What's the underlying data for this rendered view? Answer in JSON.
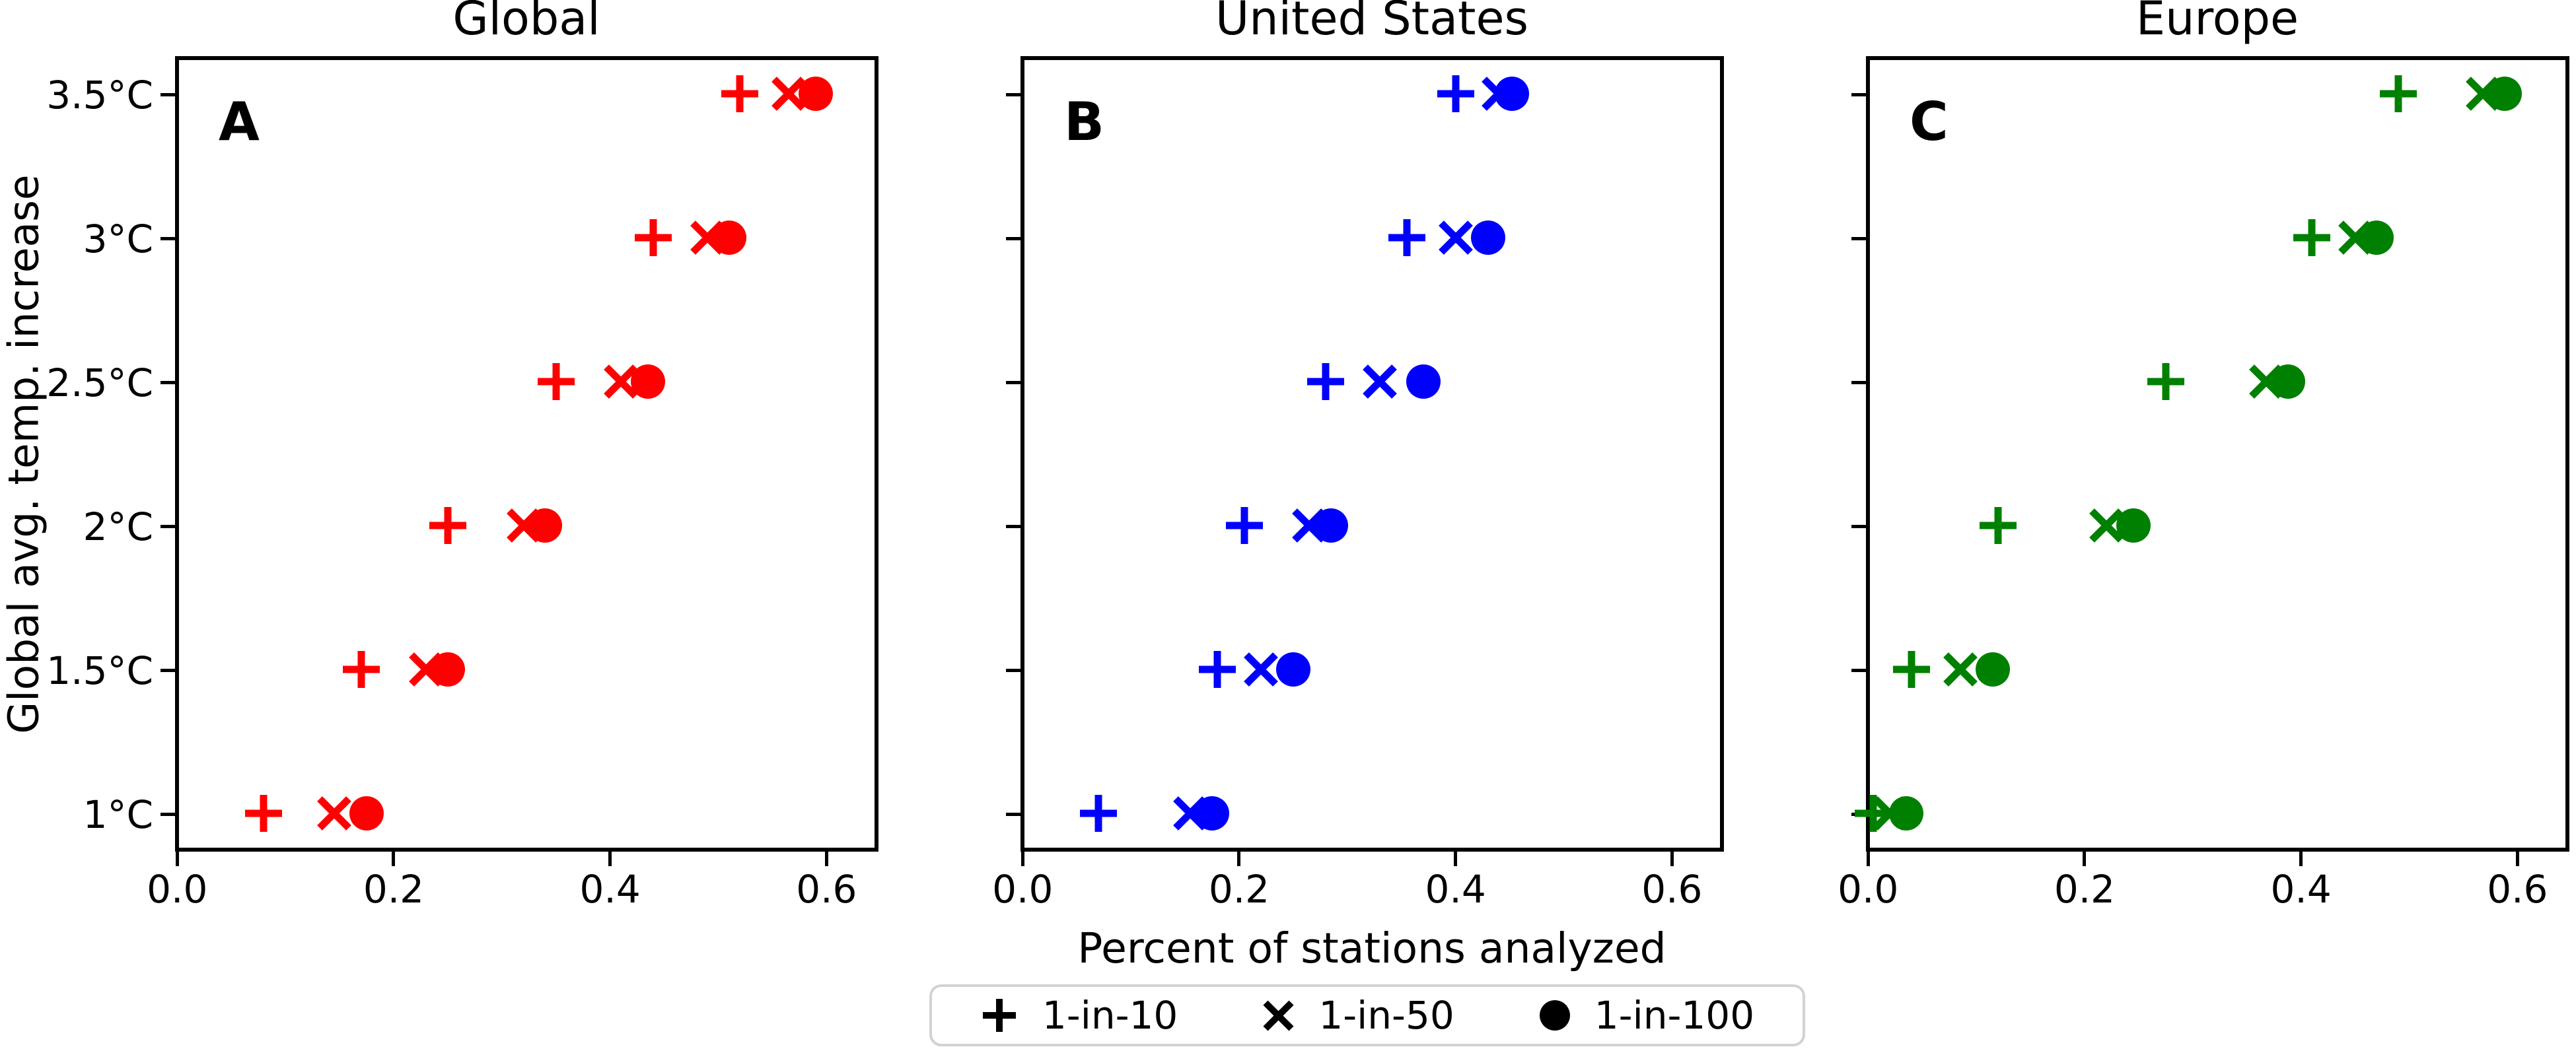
{
  "chart_data": {
    "type": "scatter",
    "x_label": "Percent of stations analyzed",
    "y_label": "Global avg. temp. increase",
    "x_ticks": [
      0.0,
      0.2,
      0.4,
      0.6
    ],
    "x_tick_labels": [
      "0.0",
      "0.2",
      "0.4",
      "0.6"
    ],
    "y_categories": [
      "1°C",
      "1.5°C",
      "2°C",
      "2.5°C",
      "3°C",
      "3.5°C"
    ],
    "y_values": [
      1,
      1.5,
      2,
      2.5,
      3,
      3.5
    ],
    "xlim": [
      -0.002,
      0.648
    ],
    "ylim": [
      0.871,
      3.635
    ],
    "grid": false,
    "legend_position": "bottom-center",
    "series_names": [
      "1-in-10",
      "1-in-50",
      "1-in-100"
    ],
    "panels": [
      {
        "letter": "A",
        "title": "Global",
        "color": "#ff0000",
        "series": [
          {
            "name": "1-in-10",
            "marker": "plus",
            "x": [
              0.08,
              0.17,
              0.25,
              0.35,
              0.44,
              0.52
            ]
          },
          {
            "name": "1-in-50",
            "marker": "x",
            "x": [
              0.145,
              0.23,
              0.32,
              0.41,
              0.49,
              0.565
            ]
          },
          {
            "name": "1-in-100",
            "marker": "dot",
            "x": [
              0.175,
              0.25,
              0.34,
              0.435,
              0.51,
              0.59
            ]
          }
        ]
      },
      {
        "letter": "B",
        "title": "United States",
        "color": "#0000ff",
        "series": [
          {
            "name": "1-in-10",
            "marker": "plus",
            "x": [
              0.07,
              0.18,
              0.205,
              0.28,
              0.355,
              0.4
            ]
          },
          {
            "name": "1-in-50",
            "marker": "x",
            "x": [
              0.155,
              0.22,
              0.265,
              0.33,
              0.4,
              0.44
            ]
          },
          {
            "name": "1-in-100",
            "marker": "dot",
            "x": [
              0.175,
              0.25,
              0.285,
              0.37,
              0.43,
              0.452
            ]
          }
        ]
      },
      {
        "letter": "C",
        "title": "Europe",
        "color": "#008000",
        "series": [
          {
            "name": "1-in-10",
            "marker": "plus",
            "x": [
              0.005,
              0.04,
              0.12,
              0.275,
              0.41,
              0.49
            ]
          },
          {
            "name": "1-in-50",
            "marker": "x",
            "x": [
              0.02,
              0.085,
              0.22,
              0.368,
              0.45,
              0.568
            ]
          },
          {
            "name": "1-in-100",
            "marker": "dot",
            "x": [
              0.035,
              0.115,
              0.245,
              0.388,
              0.47,
              0.588
            ]
          }
        ]
      }
    ],
    "legend": {
      "marker_color": "#000000",
      "items": [
        {
          "marker": "plus",
          "label": "1-in-10"
        },
        {
          "marker": "x",
          "label": "1-in-50"
        },
        {
          "marker": "dot",
          "label": "1-in-100"
        }
      ]
    }
  }
}
